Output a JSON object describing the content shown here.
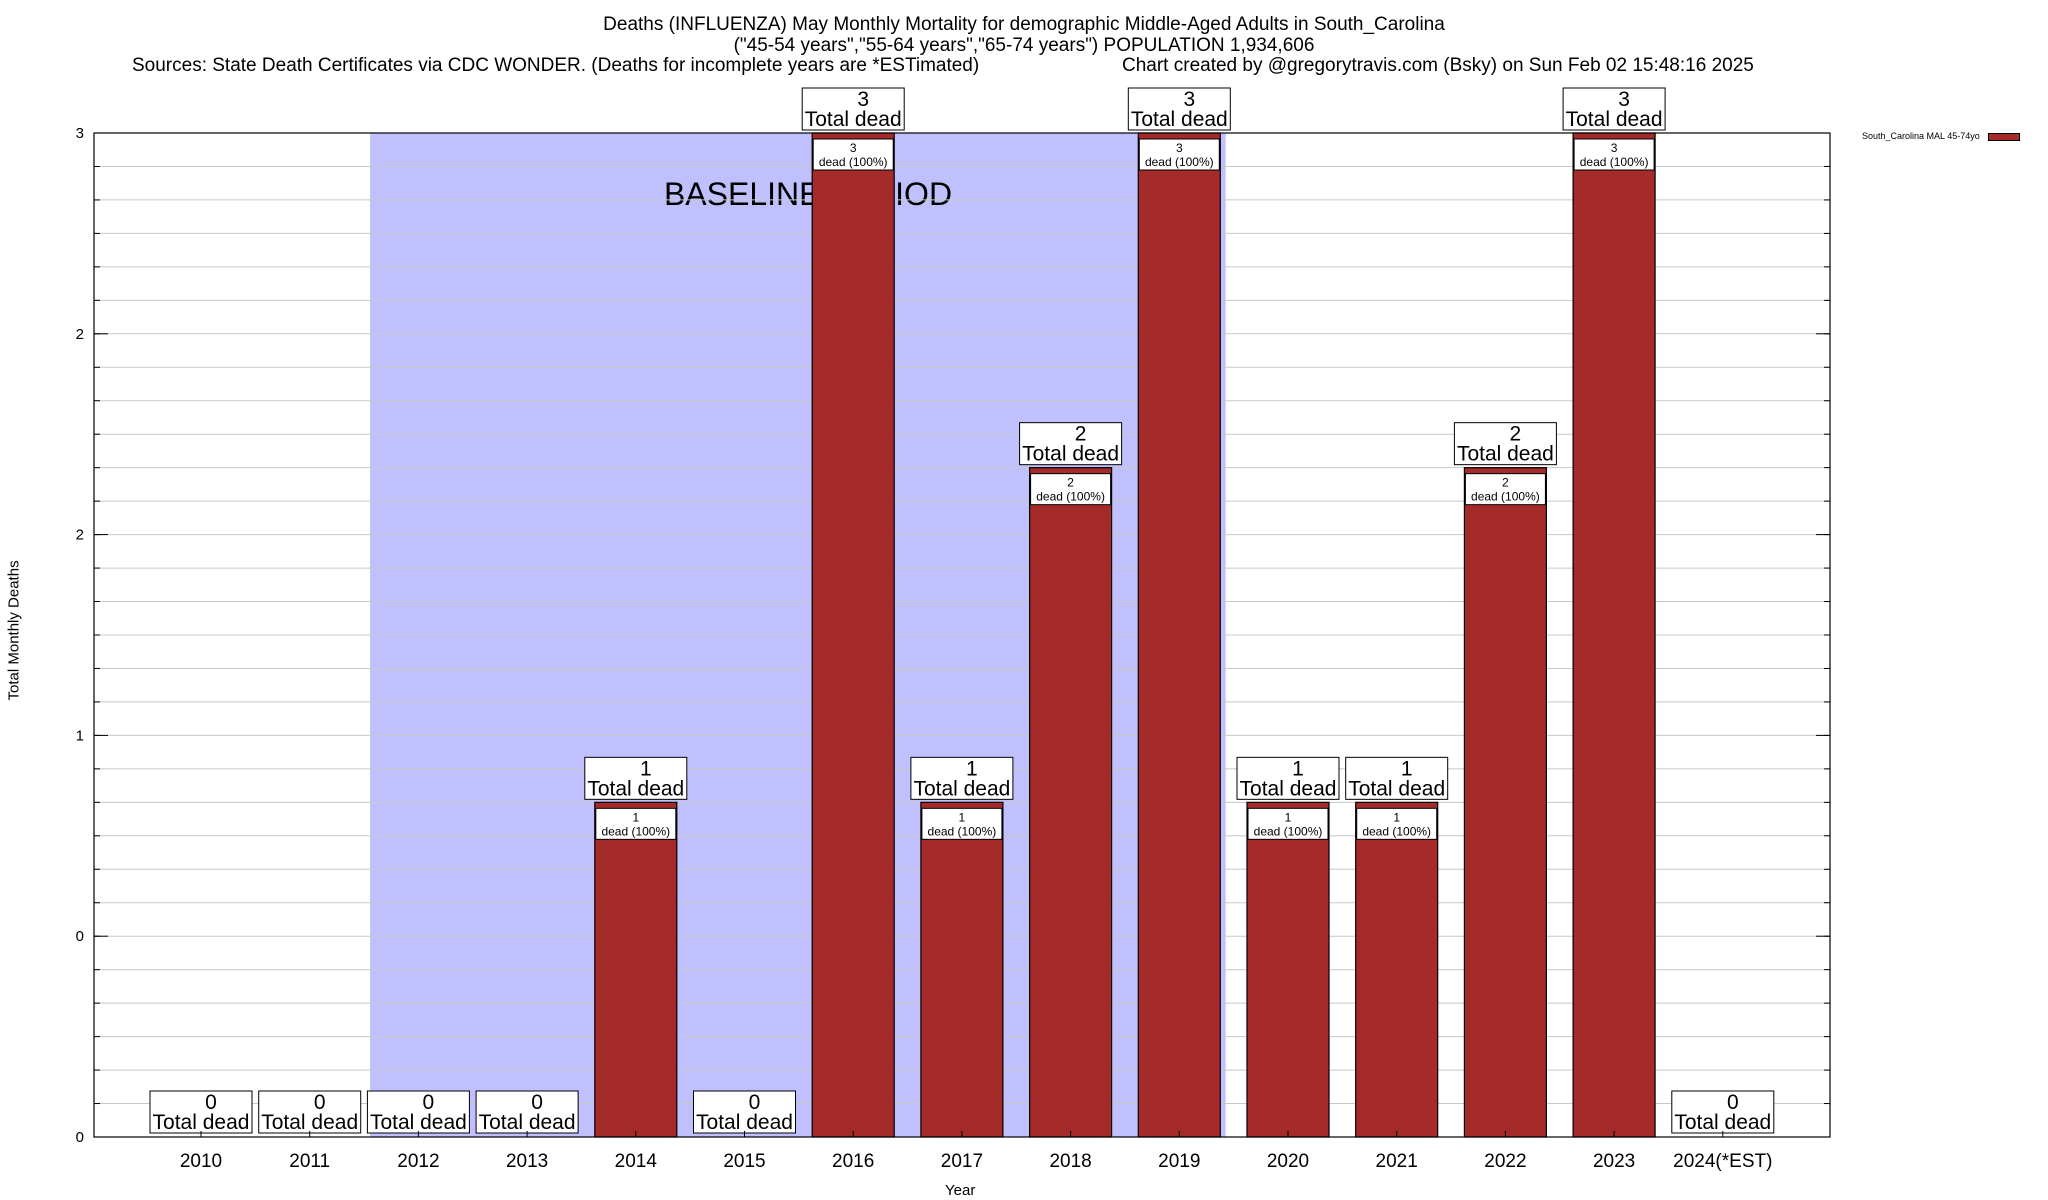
{
  "header": {
    "title_line1": "Deaths (INFLUENZA) May Monthly Mortality for demographic Middle-Aged Adults in South_Carolina",
    "title_line2": "(\"45-54 years\",\"55-64 years\",\"65-74 years\") POPULATION 1,934,606",
    "sources": "Sources: State Death Certificates via CDC WONDER. (Deaths for incomplete years are *ESTimated)",
    "credit": "Chart created by @gregorytravis.com (Bsky) on Sun Feb 02 15:48:16 2025"
  },
  "chart_data": {
    "type": "bar",
    "categories": [
      "2010",
      "2011",
      "2012",
      "2013",
      "2014",
      "2015",
      "2016",
      "2017",
      "2018",
      "2019",
      "2020",
      "2021",
      "2022",
      "2023",
      "2024(*EST)"
    ],
    "series": [
      {
        "name": "South_Carolina MAL 45-74yo",
        "values": [
          0,
          0,
          0,
          0,
          1,
          0,
          3,
          1,
          2,
          3,
          1,
          1,
          2,
          3,
          0
        ],
        "color": "#a52a2a"
      }
    ],
    "bar_label_suffix": "Total dead",
    "inner_label_suffix": "dead (100%)",
    "xlabel": "Year",
    "ylabel": "Total Monthly Deaths",
    "ylim": [
      0,
      3
    ],
    "y_tick_labels": [
      "0",
      "0",
      "1",
      "2",
      "2",
      "3"
    ],
    "grid": true,
    "baseline_period": {
      "label": "BASELINE PERIOD",
      "from": "2012",
      "to": "2019",
      "color": "#c0c0ff"
    },
    "legend_position": "top-right"
  }
}
